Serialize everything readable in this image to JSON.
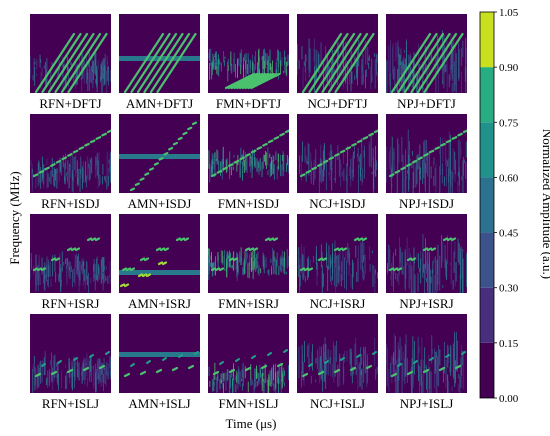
{
  "chart_data": {
    "type": "heatmap",
    "layout": {
      "rows": 4,
      "cols": 5
    },
    "panels": [
      {
        "label": "RFN+DFTJ",
        "noise": "RFN",
        "jamming": "DFTJ"
      },
      {
        "label": "AMN+DFTJ",
        "noise": "AMN",
        "jamming": "DFTJ"
      },
      {
        "label": "FMN+DFTJ",
        "noise": "FMN",
        "jamming": "DFTJ"
      },
      {
        "label": "NCJ+DFTJ",
        "noise": "NCJ",
        "jamming": "DFTJ"
      },
      {
        "label": "NPJ+DFTJ",
        "noise": "NPJ",
        "jamming": "DFTJ"
      },
      {
        "label": "RFN+ISDJ",
        "noise": "RFN",
        "jamming": "ISDJ"
      },
      {
        "label": "AMN+ISDJ",
        "noise": "AMN",
        "jamming": "ISDJ"
      },
      {
        "label": "FMN+ISDJ",
        "noise": "FMN",
        "jamming": "ISDJ"
      },
      {
        "label": "NCJ+ISDJ",
        "noise": "NCJ",
        "jamming": "ISDJ"
      },
      {
        "label": "NPJ+ISDJ",
        "noise": "NPJ",
        "jamming": "ISDJ"
      },
      {
        "label": "RFN+ISRJ",
        "noise": "RFN",
        "jamming": "ISRJ"
      },
      {
        "label": "AMN+ISRJ",
        "noise": "AMN",
        "jamming": "ISRJ"
      },
      {
        "label": "FMN+ISRJ",
        "noise": "FMN",
        "jamming": "ISRJ"
      },
      {
        "label": "NCJ+ISRJ",
        "noise": "NCJ",
        "jamming": "ISRJ"
      },
      {
        "label": "NPJ+ISRJ",
        "noise": "NPJ",
        "jamming": "ISRJ"
      },
      {
        "label": "RFN+ISLJ",
        "noise": "RFN",
        "jamming": "ISLJ"
      },
      {
        "label": "AMN+ISLJ",
        "noise": "AMN",
        "jamming": "ISLJ"
      },
      {
        "label": "FMN+ISLJ",
        "noise": "FMN",
        "jamming": "ISLJ"
      },
      {
        "label": "NCJ+ISLJ",
        "noise": "NCJ",
        "jamming": "ISLJ"
      },
      {
        "label": "NPJ+ISLJ",
        "noise": "NPJ",
        "jamming": "ISLJ"
      }
    ],
    "xlabel": "Time (μs)",
    "ylabel": "Frequency (MHz)",
    "colorbar": {
      "label": "Normalized Amplitude (a.u.)",
      "ticks": [
        "0.00",
        "0.15",
        "0.30",
        "0.45",
        "0.60",
        "0.75",
        "0.90",
        "1.05"
      ],
      "range": [
        0,
        1.05
      ],
      "colormap": "viridis",
      "levels": [
        "#440154",
        "#46327e",
        "#365c8d",
        "#277f8e",
        "#1fa187",
        "#4ac16d",
        "#a0da39",
        "#fde725"
      ]
    },
    "grid": false
  }
}
